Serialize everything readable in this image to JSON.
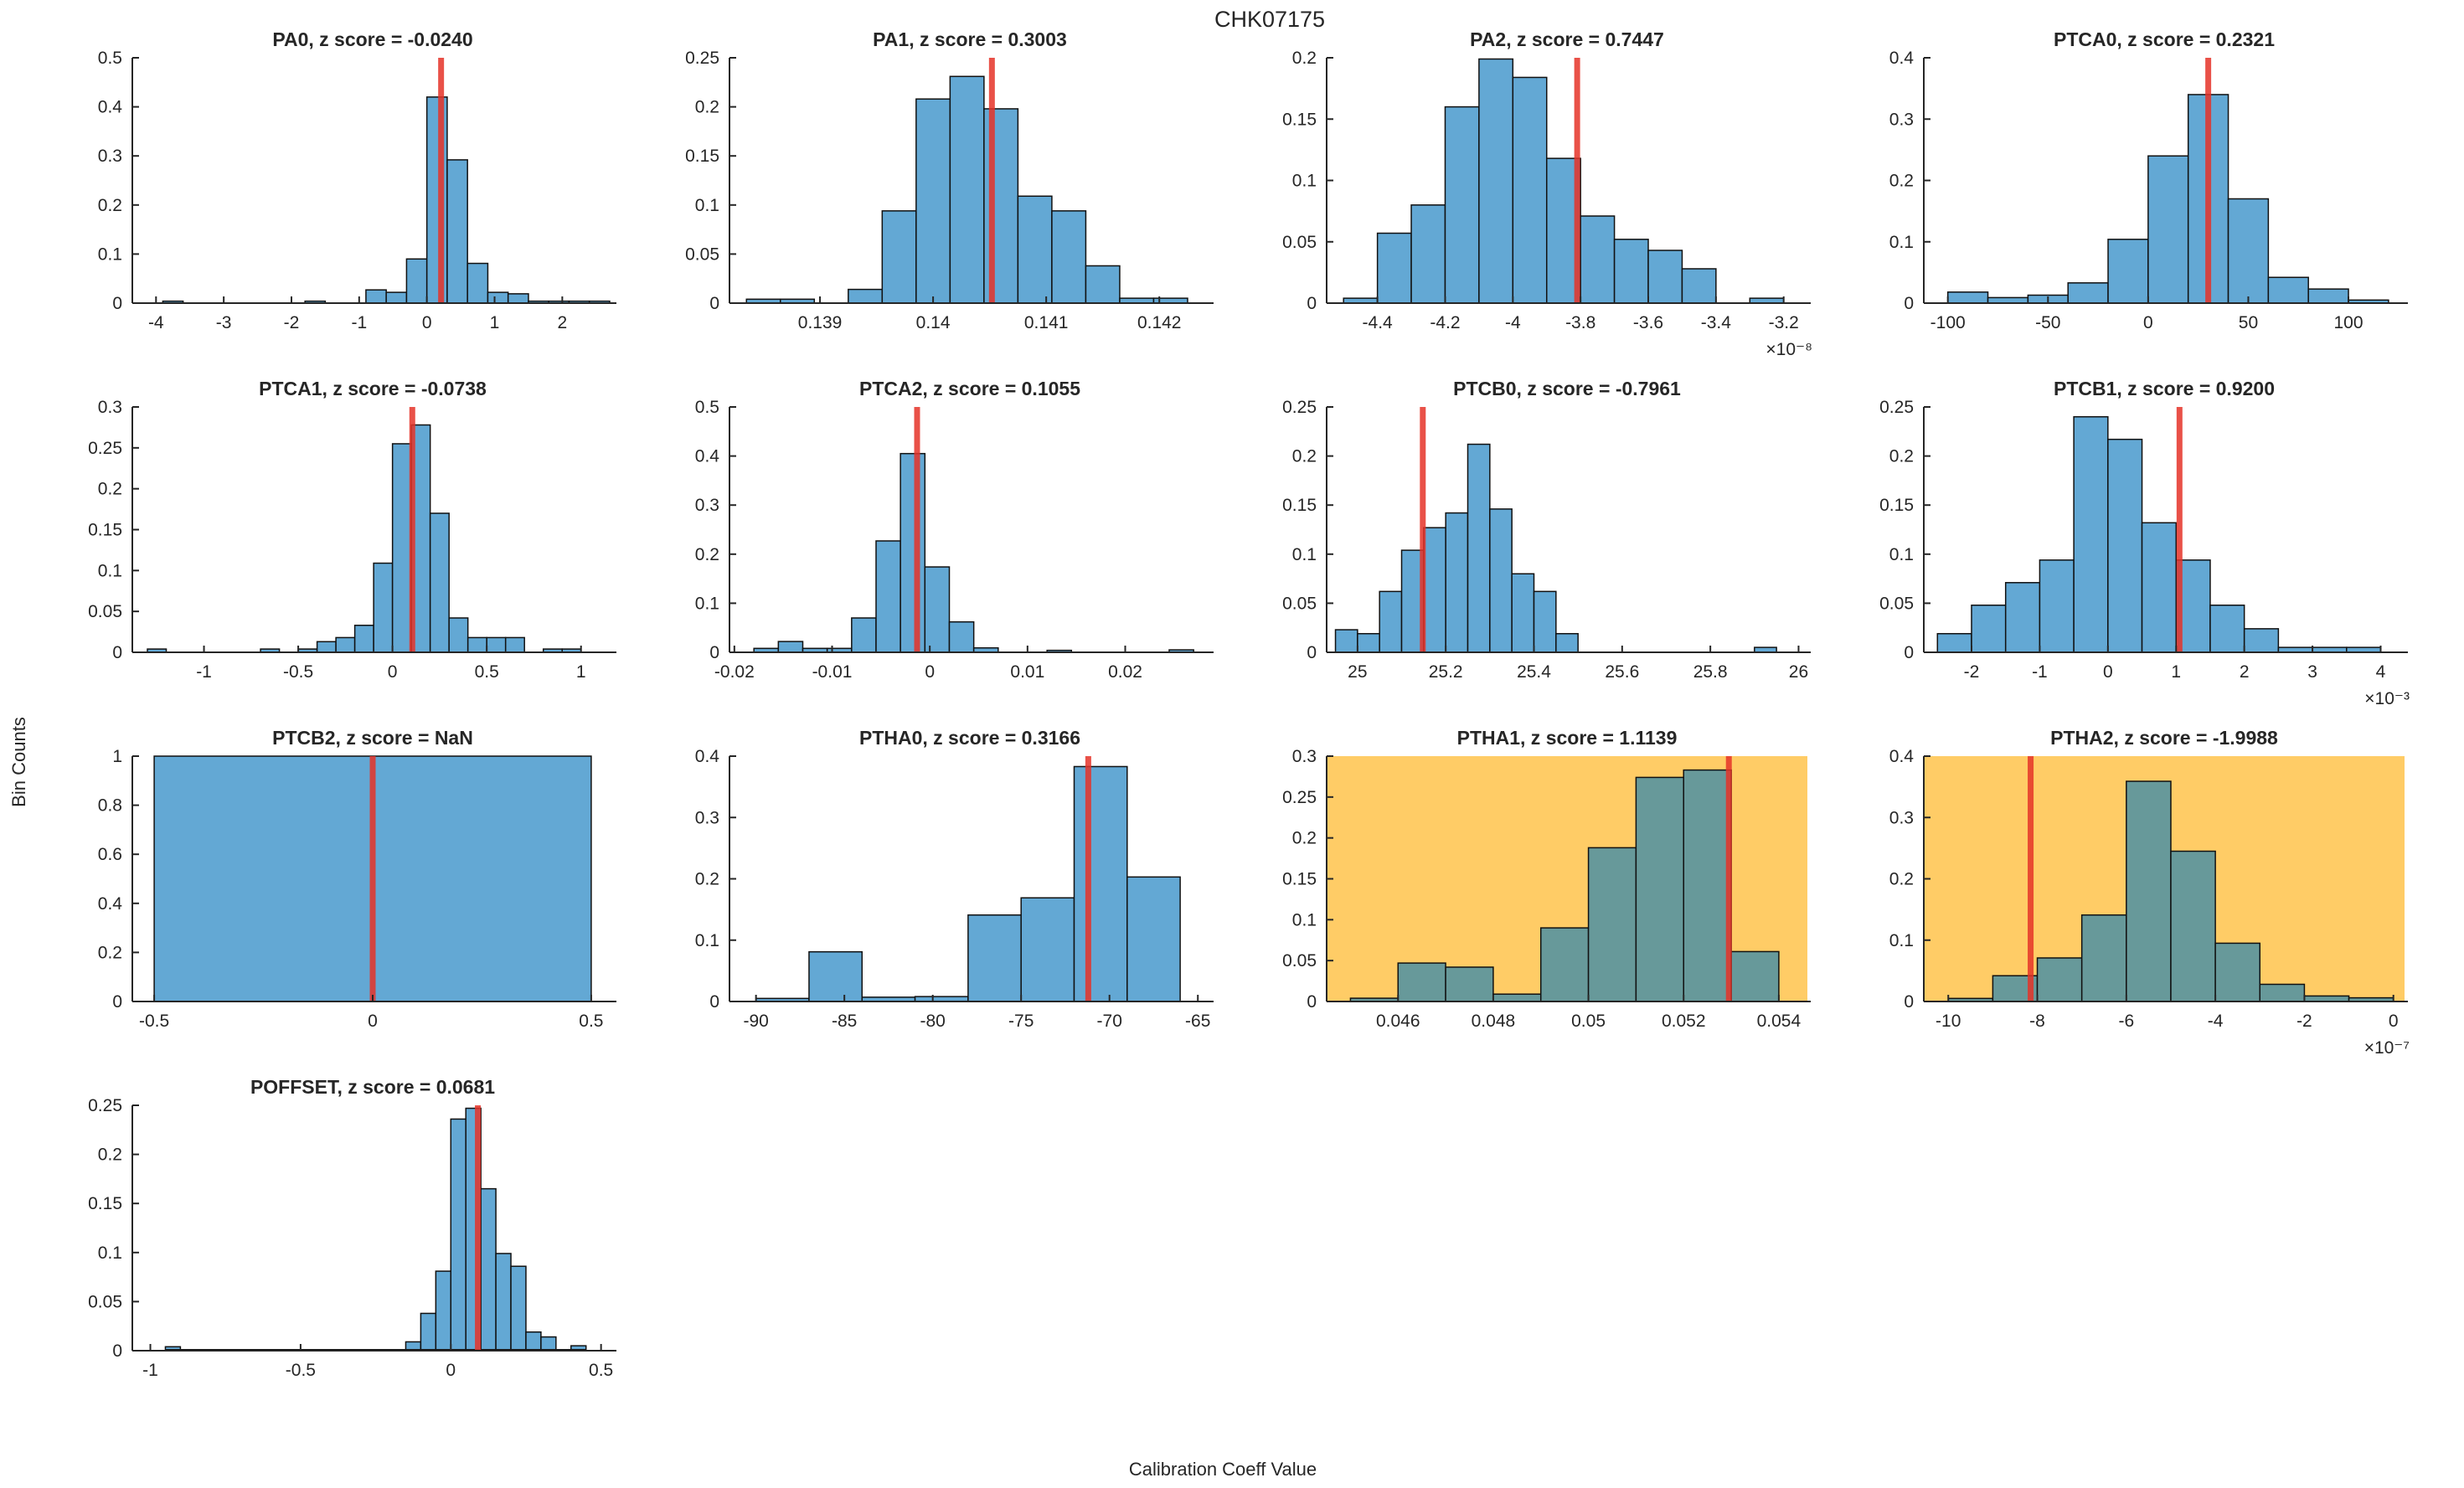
{
  "figure": {
    "title": "CHK07175",
    "ylabel": "Bin Counts",
    "xlabel": "Calibration Coeff Value"
  },
  "colors": {
    "bar_blue": "#63A8D4",
    "bar_teal": "#67999A",
    "bar_edge": "#111111",
    "red_line": "#E53228",
    "highlight_bg": "#FFCC66",
    "axis": "#262626"
  },
  "chart_data": [
    {
      "type": "bar",
      "param": "PA0",
      "z_score": "-0.0240",
      "title": "PA0, z score = -0.0240",
      "row": 0,
      "col": 0,
      "highlighted": false,
      "xlim": [
        -4.35,
        2.75
      ],
      "ylim": [
        0,
        0.5
      ],
      "xtick_vals": [
        -4,
        -3,
        -2,
        -1,
        0,
        1,
        2
      ],
      "xtick_labels": [
        "-4",
        "-3",
        "-2",
        "-1",
        "0",
        "1",
        "2"
      ],
      "ytick_vals": [
        0,
        0.1,
        0.2,
        0.3,
        0.4,
        0.5
      ],
      "ytick_labels": [
        "0",
        "0.1",
        "0.2",
        "0.3",
        "0.4",
        "0.5"
      ],
      "bin_width": 0.3,
      "bars": [
        [
          -3.9,
          0.004
        ],
        [
          -1.8,
          0.004
        ],
        [
          -0.9,
          0.027
        ],
        [
          -0.6,
          0.022
        ],
        [
          -0.3,
          0.09
        ],
        [
          0,
          0.42
        ],
        [
          0.3,
          0.292
        ],
        [
          0.6,
          0.081
        ],
        [
          0.9,
          0.022
        ],
        [
          1.2,
          0.019
        ],
        [
          1.5,
          0.004
        ],
        [
          1.8,
          0.004
        ],
        [
          2.1,
          0.004
        ],
        [
          2.4,
          0.004
        ]
      ],
      "red_line_x": 0.21,
      "exp_label": ""
    },
    {
      "type": "bar",
      "param": "PA1",
      "z_score": "0.3003",
      "title": "PA1, z score = 0.3003",
      "row": 0,
      "col": 1,
      "highlighted": false,
      "xlim": [
        0.1382,
        0.14245
      ],
      "ylim": [
        0,
        0.25
      ],
      "xtick_vals": [
        0.139,
        0.14,
        0.141,
        0.142
      ],
      "xtick_labels": [
        "0.139",
        "0.14",
        "0.141",
        "0.142"
      ],
      "ytick_vals": [
        0,
        0.05,
        0.1,
        0.15,
        0.2,
        0.25
      ],
      "ytick_labels": [
        "0",
        "0.05",
        "0.1",
        "0.15",
        "0.2",
        "0.25"
      ],
      "bin_width": 0.0003,
      "bars": [
        [
          0.13835,
          0.004
        ],
        [
          0.13865,
          0.004
        ],
        [
          0.13925,
          0.014
        ],
        [
          0.13955,
          0.094
        ],
        [
          0.13985,
          0.208
        ],
        [
          0.14015,
          0.231
        ],
        [
          0.14045,
          0.198
        ],
        [
          0.14075,
          0.109
        ],
        [
          0.14105,
          0.094
        ],
        [
          0.14135,
          0.038
        ],
        [
          0.14165,
          0.005
        ],
        [
          0.14195,
          0.005
        ]
      ],
      "red_line_x": 0.14052,
      "exp_label": ""
    },
    {
      "type": "bar",
      "param": "PA2",
      "z_score": "0.7447",
      "title": "PA2, z score = 0.7447",
      "row": 0,
      "col": 2,
      "highlighted": false,
      "xlim": [
        -4.55,
        -3.13
      ],
      "ylim": [
        0,
        0.2
      ],
      "xtick_vals": [
        -4.4,
        -4.2,
        -4,
        -3.8,
        -3.6,
        -3.4,
        -3.2
      ],
      "xtick_labels": [
        "-4.4",
        "-4.2",
        "-4",
        "-3.8",
        "-3.6",
        "-3.4",
        "-3.2"
      ],
      "ytick_vals": [
        0,
        0.05,
        0.1,
        0.15,
        0.2
      ],
      "ytick_labels": [
        "0",
        "0.05",
        "0.1",
        "0.15",
        "0.2"
      ],
      "bin_width": 0.1,
      "bars": [
        [
          -4.5,
          0.004
        ],
        [
          -4.4,
          0.057
        ],
        [
          -4.3,
          0.08
        ],
        [
          -4.2,
          0.16
        ],
        [
          -4.1,
          0.199
        ],
        [
          -4.0,
          0.184
        ],
        [
          -3.9,
          0.118
        ],
        [
          -3.8,
          0.071
        ],
        [
          -3.7,
          0.052
        ],
        [
          -3.6,
          0.043
        ],
        [
          -3.5,
          0.028
        ],
        [
          -3.3,
          0.004
        ]
      ],
      "red_line_x": -3.81,
      "exp_label": "×10⁻⁸"
    },
    {
      "type": "bar",
      "param": "PTCA0",
      "z_score": "0.2321",
      "title": "PTCA0, z score = 0.2321",
      "row": 0,
      "col": 3,
      "highlighted": false,
      "xlim": [
        -112,
        128
      ],
      "ylim": [
        0,
        0.4
      ],
      "xtick_vals": [
        -100,
        -50,
        0,
        50,
        100
      ],
      "xtick_labels": [
        "-100",
        "-50",
        "0",
        "50",
        "100"
      ],
      "ytick_vals": [
        0,
        0.1,
        0.2,
        0.3,
        0.4
      ],
      "ytick_labels": [
        "0",
        "0.1",
        "0.2",
        "0.3",
        "0.4"
      ],
      "bin_width": 20,
      "bars": [
        [
          -100,
          0.018
        ],
        [
          -80,
          0.009
        ],
        [
          -60,
          0.013
        ],
        [
          -40,
          0.033
        ],
        [
          -20,
          0.104
        ],
        [
          0,
          0.24
        ],
        [
          20,
          0.34
        ],
        [
          40,
          0.17
        ],
        [
          60,
          0.042
        ],
        [
          80,
          0.023
        ],
        [
          100,
          0.005
        ]
      ],
      "red_line_x": 30,
      "exp_label": ""
    },
    {
      "type": "bar",
      "param": "PTCA1",
      "z_score": "-0.0738",
      "title": "PTCA1, z score = -0.0738",
      "row": 1,
      "col": 0,
      "highlighted": false,
      "xlim": [
        -1.38,
        1.17
      ],
      "ylim": [
        0,
        0.3
      ],
      "xtick_vals": [
        -1,
        -0.5,
        0,
        0.5,
        1
      ],
      "xtick_labels": [
        "-1",
        "-0.5",
        "0",
        "0.5",
        "1"
      ],
      "ytick_vals": [
        0,
        0.05,
        0.1,
        0.15,
        0.2,
        0.25,
        0.3
      ],
      "ytick_labels": [
        "0",
        "0.05",
        "0.1",
        "0.15",
        "0.2",
        "0.25",
        "0.3"
      ],
      "bin_width": 0.1,
      "bars": [
        [
          -1.3,
          0.004
        ],
        [
          -0.7,
          0.004
        ],
        [
          -0.5,
          0.004
        ],
        [
          -0.4,
          0.013
        ],
        [
          -0.3,
          0.018
        ],
        [
          -0.2,
          0.033
        ],
        [
          -0.1,
          0.109
        ],
        [
          0,
          0.255
        ],
        [
          0.1,
          0.278
        ],
        [
          0.2,
          0.17
        ],
        [
          0.3,
          0.042
        ],
        [
          0.4,
          0.018
        ],
        [
          0.5,
          0.018
        ],
        [
          0.6,
          0.018
        ],
        [
          0.8,
          0.004
        ],
        [
          0.9,
          0.004
        ]
      ],
      "red_line_x": 0.105,
      "exp_label": ""
    },
    {
      "type": "bar",
      "param": "PTCA2",
      "z_score": "0.1055",
      "title": "PTCA2, z score = 0.1055",
      "row": 1,
      "col": 1,
      "highlighted": false,
      "xlim": [
        -0.0205,
        0.0287
      ],
      "ylim": [
        0,
        0.5
      ],
      "xtick_vals": [
        -0.02,
        -0.01,
        0,
        0.01,
        0.02
      ],
      "xtick_labels": [
        "-0.02",
        "-0.01",
        "0",
        "0.01",
        "0.02"
      ],
      "ytick_vals": [
        0,
        0.1,
        0.2,
        0.3,
        0.4,
        0.5
      ],
      "ytick_labels": [
        "0",
        "0.1",
        "0.2",
        "0.3",
        "0.4",
        "0.5"
      ],
      "bin_width": 0.0025,
      "bars": [
        [
          -0.018,
          0.008
        ],
        [
          -0.0155,
          0.022
        ],
        [
          -0.013,
          0.008
        ],
        [
          -0.0105,
          0.008
        ],
        [
          -0.008,
          0.07
        ],
        [
          -0.0055,
          0.227
        ],
        [
          -0.003,
          0.405
        ],
        [
          -0.0005,
          0.174
        ],
        [
          0.002,
          0.062
        ],
        [
          0.0045,
          0.009
        ],
        [
          0.012,
          0.004
        ],
        [
          0.0245,
          0.005
        ]
      ],
      "red_line_x": -0.0013,
      "exp_label": ""
    },
    {
      "type": "bar",
      "param": "PTCB0",
      "z_score": "-0.7961",
      "title": "PTCB0, z score = -0.7961",
      "row": 1,
      "col": 2,
      "highlighted": false,
      "xlim": [
        24.93,
        26.02
      ],
      "ylim": [
        0,
        0.25
      ],
      "xtick_vals": [
        25,
        25.2,
        25.4,
        25.6,
        25.8,
        26
      ],
      "xtick_labels": [
        "25",
        "25.2",
        "25.4",
        "25.6",
        "25.8",
        "26"
      ],
      "ytick_vals": [
        0,
        0.05,
        0.1,
        0.15,
        0.2,
        0.25
      ],
      "ytick_labels": [
        "0",
        "0.05",
        "0.1",
        "0.15",
        "0.2",
        "0.25"
      ],
      "bin_width": 0.05,
      "bars": [
        [
          24.95,
          0.023
        ],
        [
          25.0,
          0.019
        ],
        [
          25.05,
          0.062
        ],
        [
          25.1,
          0.104
        ],
        [
          25.15,
          0.127
        ],
        [
          25.2,
          0.142
        ],
        [
          25.25,
          0.212
        ],
        [
          25.3,
          0.146
        ],
        [
          25.35,
          0.08
        ],
        [
          25.4,
          0.062
        ],
        [
          25.45,
          0.019
        ],
        [
          25.9,
          0.005
        ]
      ],
      "red_line_x": 25.148,
      "exp_label": ""
    },
    {
      "type": "bar",
      "param": "PTCB1",
      "z_score": "0.9200",
      "title": "PTCB1, z score = 0.9200",
      "row": 1,
      "col": 3,
      "highlighted": false,
      "xlim": [
        -2.7,
        4.35
      ],
      "ylim": [
        0,
        0.25
      ],
      "xtick_vals": [
        -2,
        -1,
        0,
        1,
        2,
        3,
        4
      ],
      "xtick_labels": [
        "-2",
        "-1",
        "0",
        "1",
        "2",
        "3",
        "4"
      ],
      "ytick_vals": [
        0,
        0.05,
        0.1,
        0.15,
        0.2,
        0.25
      ],
      "ytick_labels": [
        "0",
        "0.05",
        "0.1",
        "0.15",
        "0.2",
        "0.25"
      ],
      "bin_width": 0.5,
      "bars": [
        [
          -2.5,
          0.019
        ],
        [
          -2.0,
          0.048
        ],
        [
          -1.5,
          0.071
        ],
        [
          -1.0,
          0.094
        ],
        [
          -0.5,
          0.24
        ],
        [
          0,
          0.217
        ],
        [
          0.5,
          0.132
        ],
        [
          1.0,
          0.094
        ],
        [
          1.5,
          0.048
        ],
        [
          2.0,
          0.024
        ],
        [
          2.5,
          0.005
        ],
        [
          3.0,
          0.005
        ],
        [
          3.5,
          0.005
        ]
      ],
      "red_line_x": 1.05,
      "exp_label": "×10⁻³"
    },
    {
      "type": "bar",
      "param": "PTCB2",
      "z_score": "NaN",
      "title": "PTCB2, z score = NaN",
      "row": 2,
      "col": 0,
      "highlighted": false,
      "xlim": [
        -0.55,
        0.55
      ],
      "ylim": [
        0,
        1
      ],
      "xtick_vals": [
        -0.5,
        0,
        0.5
      ],
      "xtick_labels": [
        "-0.5",
        "0",
        "0.5"
      ],
      "ytick_vals": [
        0,
        0.2,
        0.4,
        0.6,
        0.8,
        1
      ],
      "ytick_labels": [
        "0",
        "0.2",
        "0.4",
        "0.6",
        "0.8",
        "1"
      ],
      "bin_width": 1.0,
      "bars": [
        [
          -0.5,
          1.0
        ]
      ],
      "red_line_x": 0,
      "exp_label": ""
    },
    {
      "type": "bar",
      "param": "PTHA0",
      "z_score": "0.3166",
      "title": "PTHA0, z score = 0.3166",
      "row": 2,
      "col": 1,
      "highlighted": false,
      "xlim": [
        -91.5,
        -64.3
      ],
      "ylim": [
        0,
        0.4
      ],
      "xtick_vals": [
        -90,
        -85,
        -80,
        -75,
        -70,
        -65
      ],
      "xtick_labels": [
        "-90",
        "-85",
        "-80",
        "-75",
        "-70",
        "-65"
      ],
      "ytick_vals": [
        0,
        0.1,
        0.2,
        0.3,
        0.4
      ],
      "ytick_labels": [
        "0",
        "0.1",
        "0.2",
        "0.3",
        "0.4"
      ],
      "bin_width": 3,
      "bars": [
        [
          -90,
          0.005
        ],
        [
          -87,
          0.081
        ],
        [
          -84,
          0.007
        ],
        [
          -81,
          0.008
        ],
        [
          -78,
          0.141
        ],
        [
          -75,
          0.169
        ],
        [
          -72,
          0.383
        ],
        [
          -69,
          0.203
        ]
      ],
      "red_line_x": -71.2,
      "exp_label": ""
    },
    {
      "type": "bar",
      "param": "PTHA1",
      "z_score": "1.1139",
      "title": "PTHA1, z score = 1.1139",
      "row": 2,
      "col": 2,
      "highlighted": true,
      "xlim": [
        0.0445,
        0.0546
      ],
      "ylim": [
        0,
        0.3
      ],
      "xtick_vals": [
        0.046,
        0.048,
        0.05,
        0.052,
        0.054
      ],
      "xtick_labels": [
        "0.046",
        "0.048",
        "0.05",
        "0.052",
        "0.054"
      ],
      "ytick_vals": [
        0,
        0.05,
        0.1,
        0.15,
        0.2,
        0.25,
        0.3
      ],
      "ytick_labels": [
        "0",
        "0.05",
        "0.1",
        "0.15",
        "0.2",
        "0.25",
        "0.3"
      ],
      "bin_width": 0.001,
      "bars": [
        [
          0.045,
          0.004
        ],
        [
          0.046,
          0.047
        ],
        [
          0.047,
          0.042
        ],
        [
          0.048,
          0.009
        ],
        [
          0.049,
          0.09
        ],
        [
          0.05,
          0.188
        ],
        [
          0.051,
          0.274
        ],
        [
          0.052,
          0.283
        ],
        [
          0.053,
          0.061
        ]
      ],
      "red_line_x": 0.05295,
      "exp_label": ""
    },
    {
      "type": "bar",
      "param": "PTHA2",
      "z_score": "-1.9988",
      "title": "PTHA2, z score = -1.9988",
      "row": 2,
      "col": 3,
      "highlighted": true,
      "xlim": [
        -10.55,
        0.25
      ],
      "ylim": [
        0,
        0.4
      ],
      "xtick_vals": [
        -10,
        -8,
        -6,
        -4,
        -2,
        0
      ],
      "xtick_labels": [
        "-10",
        "-8",
        "-6",
        "-4",
        "-2",
        "0"
      ],
      "ytick_vals": [
        0,
        0.1,
        0.2,
        0.3,
        0.4
      ],
      "ytick_labels": [
        "0",
        "0.1",
        "0.2",
        "0.3",
        "0.4"
      ],
      "bin_width": 1,
      "bars": [
        [
          -10,
          0.005
        ],
        [
          -9,
          0.042
        ],
        [
          -8,
          0.071
        ],
        [
          -7,
          0.141
        ],
        [
          -6,
          0.359
        ],
        [
          -5,
          0.245
        ],
        [
          -4,
          0.095
        ],
        [
          -3,
          0.028
        ],
        [
          -2,
          0.009
        ],
        [
          -1,
          0.006
        ]
      ],
      "red_line_x": -8.15,
      "exp_label": "×10⁻⁷"
    },
    {
      "type": "bar",
      "param": "POFFSET",
      "z_score": "0.0681",
      "title": "POFFSET, z score = 0.0681",
      "row": 3,
      "col": 0,
      "highlighted": false,
      "xlim": [
        -1.06,
        0.54
      ],
      "ylim": [
        0,
        0.25
      ],
      "xtick_vals": [
        -1,
        -0.5,
        0,
        0.5
      ],
      "xtick_labels": [
        "-1",
        "-0.5",
        "0",
        "0.5"
      ],
      "ytick_vals": [
        0,
        0.05,
        0.1,
        0.15,
        0.2,
        0.25
      ],
      "ytick_labels": [
        "0",
        "0.05",
        "0.1",
        "0.15",
        "0.2",
        "0.25"
      ],
      "bin_width": 0.05,
      "bars": [
        [
          -0.95,
          0.004
        ],
        [
          -0.15,
          0.009
        ],
        [
          -0.1,
          0.038
        ],
        [
          -0.05,
          0.081
        ],
        [
          0.0,
          0.236
        ],
        [
          0.05,
          0.247
        ],
        [
          0.1,
          0.165
        ],
        [
          0.15,
          0.099
        ],
        [
          0.2,
          0.086
        ],
        [
          0.25,
          0.019
        ],
        [
          0.3,
          0.014
        ],
        [
          0.4,
          0.005
        ]
      ],
      "red_line_x": 0.09,
      "exp_label": "",
      "base_line": [
        -0.95,
        0.45
      ]
    }
  ]
}
